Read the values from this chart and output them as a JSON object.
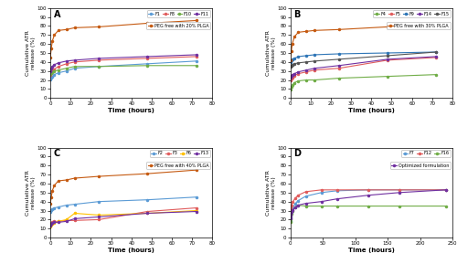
{
  "panel_A": {
    "title": "A",
    "xlabel": "Time (hours)",
    "ylabel": "Cumulative ATR\nrelease (%)",
    "xlim": [
      0,
      80
    ],
    "ylim": [
      0,
      100
    ],
    "xticks": [
      0,
      10,
      20,
      30,
      40,
      50,
      60,
      70,
      80
    ],
    "yticks": [
      0,
      10,
      20,
      30,
      40,
      50,
      60,
      70,
      80,
      90,
      100
    ],
    "legend_short_ncol": 4,
    "series": [
      {
        "label": "F1",
        "color": "#5b9bd5",
        "times": [
          0,
          0.5,
          1,
          2,
          4,
          8,
          12,
          24,
          48,
          72
        ],
        "values": [
          21,
          23,
          24,
          26,
          28,
          30,
          33,
          35,
          38,
          41
        ]
      },
      {
        "label": "F8",
        "color": "#e05c5c",
        "times": [
          0,
          0.5,
          1,
          2,
          4,
          8,
          12,
          24,
          48,
          72
        ],
        "values": [
          26,
          28,
          30,
          32,
          35,
          38,
          40,
          42,
          44,
          46
        ]
      },
      {
        "label": "F10",
        "color": "#70ad47",
        "times": [
          0,
          0.5,
          1,
          2,
          4,
          8,
          12,
          24,
          48,
          72
        ],
        "values": [
          27,
          28,
          29,
          30,
          31,
          33,
          35,
          35,
          36,
          36
        ]
      },
      {
        "label": "F11",
        "color": "#7030a0",
        "times": [
          0,
          0.5,
          1,
          2,
          4,
          8,
          12,
          24,
          48,
          72
        ],
        "values": [
          30,
          33,
          35,
          37,
          39,
          41,
          42,
          44,
          46,
          48
        ]
      },
      {
        "label": "PEG free with 20% PLGA",
        "color": "#c55a11",
        "times": [
          0,
          0.5,
          1,
          2,
          4,
          8,
          12,
          24,
          48,
          72
        ],
        "values": [
          45,
          55,
          63,
          70,
          75,
          76,
          78,
          79,
          83,
          86
        ]
      }
    ]
  },
  "panel_B": {
    "title": "B",
    "xlabel": "Time (hours)",
    "ylabel": "Cumulative ATR\nrelease (%)",
    "xlim": [
      0,
      80
    ],
    "ylim": [
      0,
      100
    ],
    "xticks": [
      0,
      10,
      20,
      30,
      40,
      50,
      60,
      70,
      80
    ],
    "yticks": [
      0,
      10,
      20,
      30,
      40,
      50,
      60,
      70,
      80,
      90,
      100
    ],
    "legend_short_ncol": 5,
    "series": [
      {
        "label": "F4",
        "color": "#70ad47",
        "times": [
          0,
          0.5,
          1,
          2,
          4,
          8,
          12,
          24,
          48,
          72
        ],
        "values": [
          9,
          12,
          14,
          17,
          19,
          20,
          20,
          22,
          24,
          26
        ]
      },
      {
        "label": "F5",
        "color": "#e05c5c",
        "times": [
          0,
          0.5,
          1,
          2,
          4,
          8,
          12,
          24,
          48,
          72
        ],
        "values": [
          20,
          22,
          23,
          25,
          27,
          29,
          31,
          33,
          42,
          45
        ]
      },
      {
        "label": "F9",
        "color": "#2e75b6",
        "times": [
          0,
          0.5,
          1,
          2,
          4,
          8,
          12,
          24,
          48,
          72
        ],
        "values": [
          40,
          42,
          43,
          44,
          46,
          47,
          48,
          49,
          50,
          51
        ]
      },
      {
        "label": "F14",
        "color": "#7030a0",
        "times": [
          0,
          0.5,
          1,
          2,
          4,
          8,
          12,
          24,
          48,
          72
        ],
        "values": [
          23,
          25,
          26,
          27,
          29,
          31,
          33,
          36,
          43,
          46
        ]
      },
      {
        "label": "F15",
        "color": "#555555",
        "times": [
          0,
          0.5,
          1,
          2,
          4,
          8,
          12,
          24,
          48,
          72
        ],
        "values": [
          35,
          36,
          37,
          38,
          39,
          40,
          41,
          43,
          47,
          51
        ]
      },
      {
        "label": "PEG free with 30% PLGA",
        "color": "#c55a11",
        "times": [
          0,
          0.5,
          1,
          2,
          4,
          8,
          12,
          24,
          48,
          72
        ],
        "values": [
          42,
          52,
          60,
          68,
          73,
          74,
          75,
          76,
          79,
          80
        ]
      }
    ]
  },
  "panel_C": {
    "title": "C",
    "xlabel": "Time (hours)",
    "ylabel": "Cumulative ATR\nrelease (%)",
    "xlim": [
      0,
      80
    ],
    "ylim": [
      0,
      100
    ],
    "xticks": [
      0,
      10,
      20,
      30,
      40,
      50,
      60,
      70,
      80
    ],
    "yticks": [
      0,
      10,
      20,
      30,
      40,
      50,
      60,
      70,
      80,
      90,
      100
    ],
    "legend_short_ncol": 4,
    "series": [
      {
        "label": "F2",
        "color": "#5b9bd5",
        "times": [
          0,
          0.5,
          1,
          2,
          4,
          8,
          12,
          24,
          48,
          72
        ],
        "values": [
          29,
          31,
          32,
          33,
          34,
          36,
          37,
          40,
          42,
          45
        ]
      },
      {
        "label": "F3",
        "color": "#e05c5c",
        "times": [
          0,
          0.5,
          1,
          2,
          4,
          8,
          12,
          24,
          48,
          72
        ],
        "values": [
          14,
          16,
          17,
          18,
          18,
          19,
          19,
          20,
          29,
          33
        ]
      },
      {
        "label": "F6",
        "color": "#ffc000",
        "times": [
          0,
          0.5,
          1,
          2,
          4,
          8,
          12,
          24,
          48,
          72
        ],
        "values": [
          12,
          14,
          15,
          16,
          18,
          20,
          27,
          25,
          27,
          30
        ]
      },
      {
        "label": "F13",
        "color": "#7030a0",
        "times": [
          0,
          0.5,
          1,
          2,
          4,
          8,
          12,
          24,
          48,
          72
        ],
        "values": [
          13,
          15,
          16,
          17,
          17,
          18,
          21,
          23,
          27,
          29
        ]
      },
      {
        "label": "PEG free with 40% PLGA",
        "color": "#c55a11",
        "times": [
          0,
          0.5,
          1,
          2,
          4,
          8,
          12,
          24,
          48,
          72
        ],
        "values": [
          38,
          45,
          52,
          58,
          63,
          64,
          66,
          68,
          71,
          75
        ]
      }
    ]
  },
  "panel_D": {
    "title": "D",
    "xlabel": "Time (hours)",
    "ylabel": "Cumulative ATR\nrelease (%)",
    "xlim": [
      0,
      250
    ],
    "ylim": [
      0,
      100
    ],
    "xticks": [
      0,
      50,
      100,
      150,
      200,
      250
    ],
    "yticks": [
      0,
      10,
      20,
      30,
      40,
      50,
      60,
      70,
      80,
      90,
      100
    ],
    "legend_short_ncol": 3,
    "series": [
      {
        "label": "F7",
        "color": "#5b9bd5",
        "times": [
          0,
          0.5,
          1,
          2,
          4,
          8,
          12,
          24,
          48,
          72,
          120,
          168,
          240
        ],
        "values": [
          18,
          22,
          25,
          28,
          33,
          38,
          41,
          46,
          50,
          52,
          53,
          53,
          53
        ]
      },
      {
        "label": "F12",
        "color": "#e05c5c",
        "times": [
          0,
          0.5,
          1,
          2,
          4,
          8,
          12,
          24,
          48,
          72,
          120,
          168,
          240
        ],
        "values": [
          26,
          30,
          33,
          36,
          40,
          44,
          47,
          51,
          53,
          53,
          53,
          53,
          53
        ]
      },
      {
        "label": "F16",
        "color": "#70ad47",
        "times": [
          0,
          0.5,
          1,
          2,
          4,
          8,
          12,
          24,
          48,
          72,
          120,
          168,
          240
        ],
        "values": [
          17,
          20,
          23,
          26,
          30,
          34,
          36,
          35,
          35,
          35,
          35,
          35,
          35
        ]
      },
      {
        "label": "Optimized formulation",
        "color": "#7030a0",
        "times": [
          0,
          0.5,
          1,
          2,
          4,
          8,
          12,
          24,
          48,
          72,
          120,
          168,
          240
        ],
        "values": [
          21,
          24,
          26,
          28,
          31,
          34,
          36,
          38,
          40,
          43,
          47,
          50,
          53
        ]
      }
    ]
  }
}
